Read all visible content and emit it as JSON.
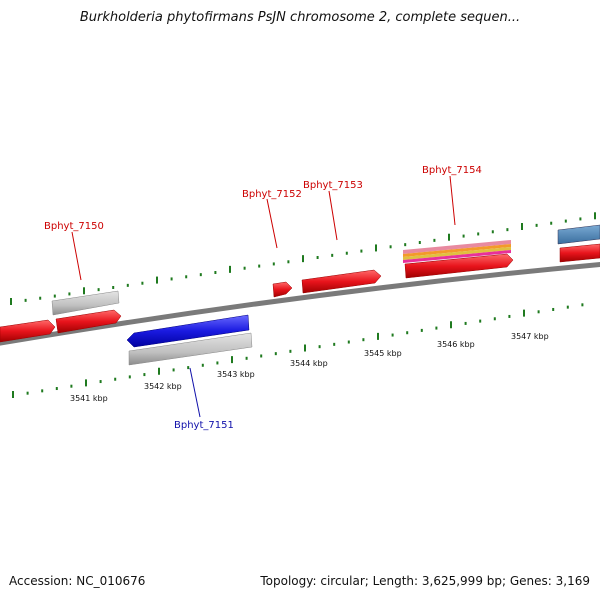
{
  "title": "Burkholderia phytofirmans PsJN chromosome 2, complete sequen...",
  "footer": {
    "accession": "Accession: NC_010676",
    "topology": "Topology: circular; Length: 3,625,999 bp; Genes: 3,169"
  },
  "colors": {
    "backbone": "#7a7a7a",
    "tick": "#1f7a1f",
    "gene_red": "#e8141c",
    "gene_blue": "#1a1ae0",
    "gene_gray": "#c0c0c0",
    "gene_steelblue": "#4a82b4",
    "label_red": "#cc0000",
    "label_blue": "#1010aa"
  },
  "scale": {
    "unit": "kbp",
    "labels": [
      "3541 kbp",
      "3542 kbp",
      "3543 kbp",
      "3544 kbp",
      "3545 kbp",
      "3546 kbp",
      "3547 kbp"
    ]
  },
  "labels": [
    {
      "text": "Bphyt_7150",
      "strand": "plus"
    },
    {
      "text": "Bphyt_7151",
      "strand": "minus"
    },
    {
      "text": "Bphyt_7152",
      "strand": "plus"
    },
    {
      "text": "Bphyt_7153",
      "strand": "plus"
    },
    {
      "text": "Bphyt_7154",
      "strand": "plus"
    }
  ]
}
